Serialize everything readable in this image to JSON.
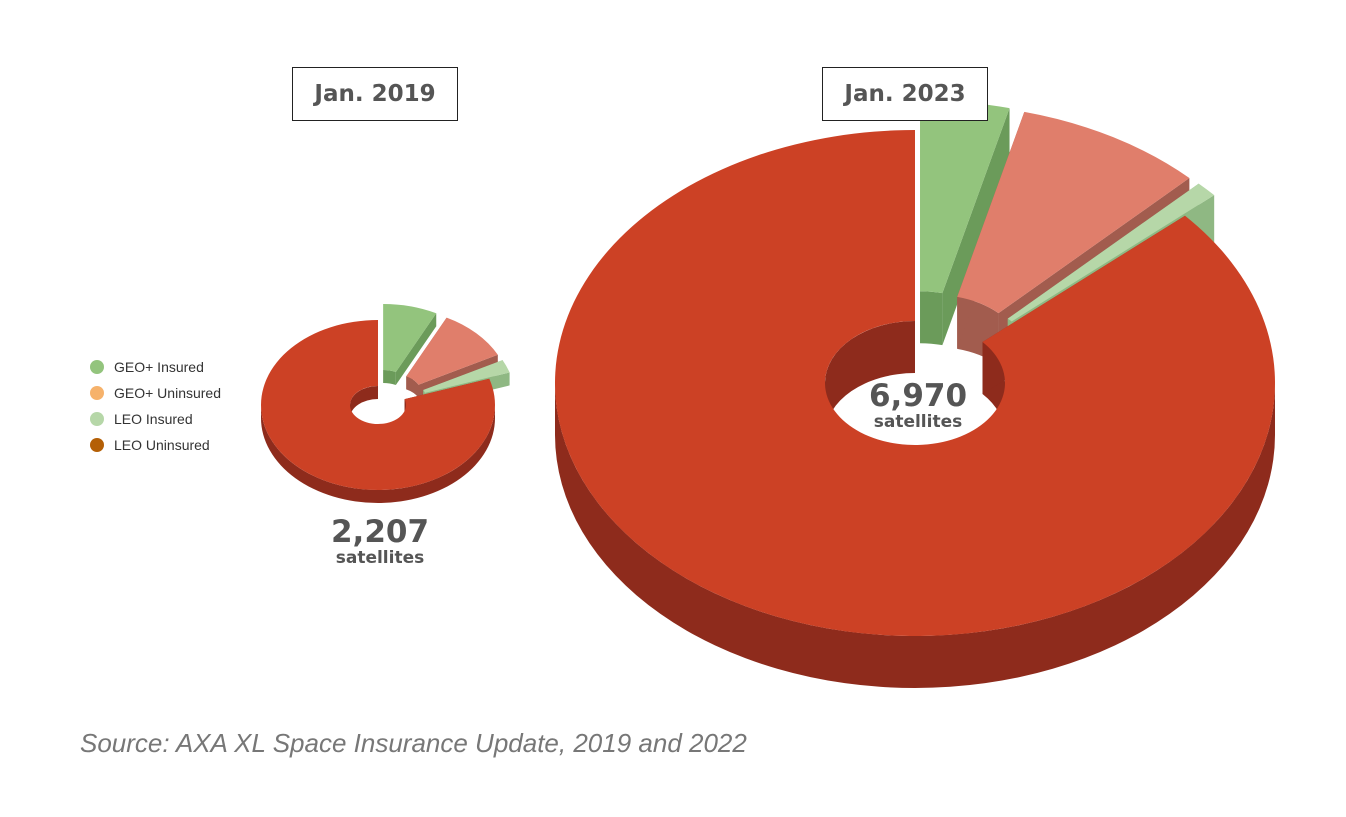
{
  "chart_data": [
    {
      "type": "pie",
      "style": "3d-exploded-donut",
      "title": "Jan. 2019",
      "total": "2,207",
      "total_unit": "satellites",
      "series": [
        {
          "name": "GEO+ Insured",
          "value": 7.5,
          "unit": "%",
          "color": "#93c47d",
          "side_color": "#6b9b5a",
          "exploded": true
        },
        {
          "name": "GEO+ Uninsured",
          "value": 10,
          "unit": "%",
          "color": "#e07e6b",
          "side_color": "#a25c4e",
          "exploded": true
        },
        {
          "name": "LEO Insured",
          "value": 2.5,
          "unit": "%",
          "color": "#b6d7a8",
          "side_color": "#8fb883",
          "exploded": true
        },
        {
          "name": "LEO Uninsured",
          "value": 80,
          "unit": "%",
          "color": "#cc4125",
          "side_color": "#8e2b1c",
          "exploded": false
        }
      ]
    },
    {
      "type": "pie",
      "style": "3d-exploded-donut",
      "title": "Jan. 2023",
      "total": "6,970",
      "total_unit": "satellites",
      "series": [
        {
          "name": "GEO+ Insured",
          "value": 4,
          "unit": "%",
          "color": "#93c47d",
          "side_color": "#6b9b5a",
          "exploded": true
        },
        {
          "name": "GEO+ Uninsured",
          "value": 8.5,
          "unit": "%",
          "color": "#e07e6b",
          "side_color": "#a25c4e",
          "exploded": true
        },
        {
          "name": "LEO Insured",
          "value": 1,
          "unit": "%",
          "color": "#b6d7a8",
          "side_color": "#8fb883",
          "exploded": true
        },
        {
          "name": "LEO Uninsured",
          "value": 86.5,
          "unit": "%",
          "color": "#cc4125",
          "side_color": "#8e2b1c",
          "exploded": false
        }
      ]
    }
  ],
  "legend": [
    {
      "label": "GEO+ Insured",
      "color": "#93c47d"
    },
    {
      "label": "GEO+ Uninsured",
      "color": "#f6b26b"
    },
    {
      "label": "LEO Insured",
      "color": "#b6d7a8"
    },
    {
      "label": "LEO Uninsured",
      "color": "#b45f06"
    }
  ],
  "source": "Source: AXA XL Space Insurance Update, 2019 and 2022"
}
